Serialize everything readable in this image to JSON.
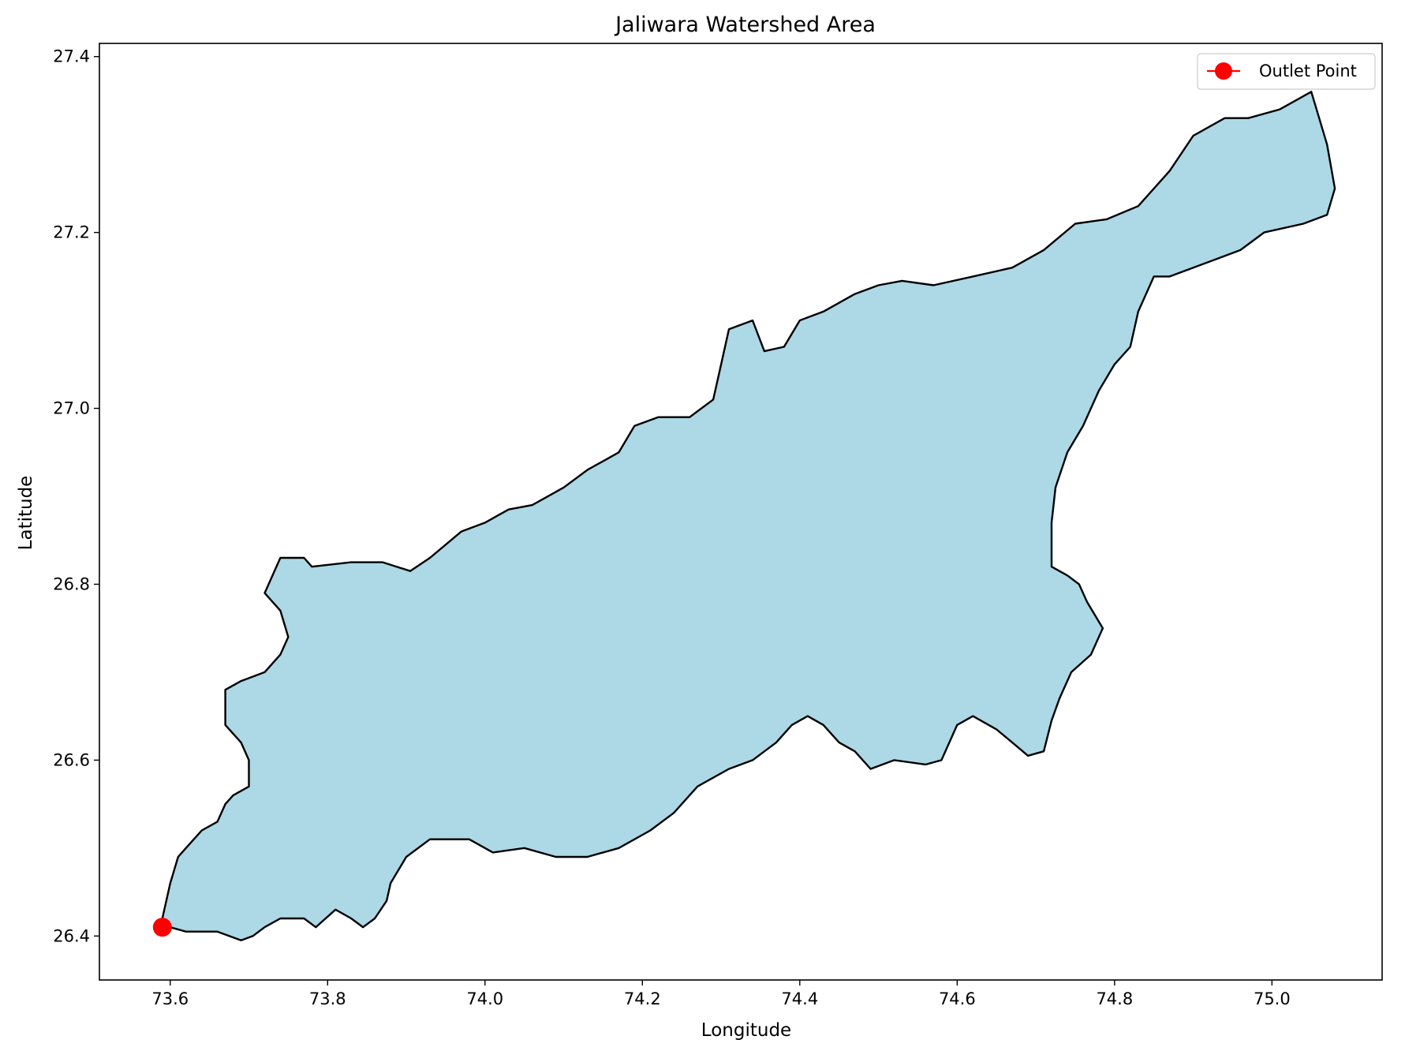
{
  "chart_data": {
    "type": "map",
    "title": "Jaliwara Watershed Area",
    "xlabel": "Longitude",
    "ylabel": "Latitude",
    "xlim": [
      73.51,
      75.14
    ],
    "ylim": [
      26.35,
      27.415
    ],
    "xticks": [
      {
        "value": 73.6,
        "label": "73.6"
      },
      {
        "value": 73.8,
        "label": "73.8"
      },
      {
        "value": 74.0,
        "label": "74.0"
      },
      {
        "value": 74.2,
        "label": "74.2"
      },
      {
        "value": 74.4,
        "label": "74.4"
      },
      {
        "value": 74.6,
        "label": "74.6"
      },
      {
        "value": 74.8,
        "label": "74.8"
      },
      {
        "value": 75.0,
        "label": "75.0"
      }
    ],
    "yticks": [
      {
        "value": 26.4,
        "label": "26.4"
      },
      {
        "value": 26.6,
        "label": "26.6"
      },
      {
        "value": 26.8,
        "label": "26.8"
      },
      {
        "value": 27.0,
        "label": "27.0"
      },
      {
        "value": 27.2,
        "label": "27.2"
      },
      {
        "value": 27.4,
        "label": "27.4"
      }
    ],
    "grid": false,
    "legend": {
      "position": "top-right",
      "entries": [
        "Outlet Point"
      ]
    },
    "watershed": {
      "fill": "#add8e6",
      "edge": "#000000",
      "boundary": [
        [
          73.59,
          26.42
        ],
        [
          73.6,
          26.46
        ],
        [
          73.61,
          26.49
        ],
        [
          73.62,
          26.5
        ],
        [
          73.64,
          26.52
        ],
        [
          73.66,
          26.53
        ],
        [
          73.67,
          26.55
        ],
        [
          73.68,
          26.56
        ],
        [
          73.7,
          26.57
        ],
        [
          73.7,
          26.6
        ],
        [
          73.69,
          26.62
        ],
        [
          73.67,
          26.64
        ],
        [
          73.67,
          26.68
        ],
        [
          73.69,
          26.69
        ],
        [
          73.72,
          26.7
        ],
        [
          73.74,
          26.72
        ],
        [
          73.75,
          26.74
        ],
        [
          73.74,
          26.77
        ],
        [
          73.72,
          26.79
        ],
        [
          73.74,
          26.83
        ],
        [
          73.77,
          26.83
        ],
        [
          73.78,
          26.82
        ],
        [
          73.83,
          26.825
        ],
        [
          73.87,
          26.825
        ],
        [
          73.905,
          26.815
        ],
        [
          73.93,
          26.83
        ],
        [
          73.97,
          26.86
        ],
        [
          74.0,
          26.87
        ],
        [
          74.03,
          26.885
        ],
        [
          74.06,
          26.89
        ],
        [
          74.1,
          26.91
        ],
        [
          74.13,
          26.93
        ],
        [
          74.17,
          26.95
        ],
        [
          74.19,
          26.98
        ],
        [
          74.22,
          26.99
        ],
        [
          74.26,
          26.99
        ],
        [
          74.29,
          27.01
        ],
        [
          74.3,
          27.05
        ],
        [
          74.31,
          27.09
        ],
        [
          74.34,
          27.1
        ],
        [
          74.355,
          27.065
        ],
        [
          74.38,
          27.07
        ],
        [
          74.4,
          27.1
        ],
        [
          74.43,
          27.11
        ],
        [
          74.47,
          27.13
        ],
        [
          74.5,
          27.14
        ],
        [
          74.53,
          27.145
        ],
        [
          74.57,
          27.14
        ],
        [
          74.62,
          27.15
        ],
        [
          74.67,
          27.16
        ],
        [
          74.71,
          27.18
        ],
        [
          74.75,
          27.21
        ],
        [
          74.79,
          27.215
        ],
        [
          74.83,
          27.23
        ],
        [
          74.87,
          27.27
        ],
        [
          74.9,
          27.31
        ],
        [
          74.94,
          27.33
        ],
        [
          74.97,
          27.33
        ],
        [
          75.01,
          27.34
        ],
        [
          75.05,
          27.36
        ],
        [
          75.06,
          27.33
        ],
        [
          75.07,
          27.3
        ],
        [
          75.08,
          27.25
        ],
        [
          75.07,
          27.22
        ],
        [
          75.04,
          27.21
        ],
        [
          74.99,
          27.2
        ],
        [
          74.96,
          27.18
        ],
        [
          74.93,
          27.17
        ],
        [
          74.9,
          27.16
        ],
        [
          74.87,
          27.15
        ],
        [
          74.85,
          27.15
        ],
        [
          74.83,
          27.11
        ],
        [
          74.82,
          27.07
        ],
        [
          74.8,
          27.05
        ],
        [
          74.78,
          27.02
        ],
        [
          74.76,
          26.98
        ],
        [
          74.74,
          26.95
        ],
        [
          74.725,
          26.91
        ],
        [
          74.72,
          26.87
        ],
        [
          74.72,
          26.82
        ],
        [
          74.74,
          26.81
        ],
        [
          74.755,
          26.8
        ],
        [
          74.765,
          26.78
        ],
        [
          74.785,
          26.75
        ],
        [
          74.77,
          26.72
        ],
        [
          74.745,
          26.7
        ],
        [
          74.73,
          26.67
        ],
        [
          74.72,
          26.645
        ],
        [
          74.71,
          26.61
        ],
        [
          74.69,
          26.605
        ],
        [
          74.67,
          26.62
        ],
        [
          74.65,
          26.635
        ],
        [
          74.62,
          26.65
        ],
        [
          74.6,
          26.64
        ],
        [
          74.58,
          26.6
        ],
        [
          74.56,
          26.595
        ],
        [
          74.52,
          26.6
        ],
        [
          74.49,
          26.59
        ],
        [
          74.47,
          26.61
        ],
        [
          74.45,
          26.62
        ],
        [
          74.43,
          26.64
        ],
        [
          74.41,
          26.65
        ],
        [
          74.39,
          26.64
        ],
        [
          74.37,
          26.62
        ],
        [
          74.34,
          26.6
        ],
        [
          74.31,
          26.59
        ],
        [
          74.27,
          26.57
        ],
        [
          74.24,
          26.54
        ],
        [
          74.21,
          26.52
        ],
        [
          74.17,
          26.5
        ],
        [
          74.13,
          26.49
        ],
        [
          74.09,
          26.49
        ],
        [
          74.05,
          26.5
        ],
        [
          74.01,
          26.495
        ],
        [
          73.98,
          26.51
        ],
        [
          73.93,
          26.51
        ],
        [
          73.9,
          26.49
        ],
        [
          73.88,
          26.46
        ],
        [
          73.875,
          26.44
        ],
        [
          73.86,
          26.42
        ],
        [
          73.845,
          26.41
        ],
        [
          73.83,
          26.42
        ],
        [
          73.81,
          26.43
        ],
        [
          73.785,
          26.41
        ],
        [
          73.77,
          26.42
        ],
        [
          73.74,
          26.42
        ],
        [
          73.72,
          26.41
        ],
        [
          73.705,
          26.4
        ],
        [
          73.69,
          26.395
        ],
        [
          73.66,
          26.405
        ],
        [
          73.64,
          26.405
        ],
        [
          73.62,
          26.405
        ],
        [
          73.6,
          26.41
        ]
      ]
    },
    "outlet_point": {
      "name": "Outlet Point",
      "lon": 73.59,
      "lat": 26.41,
      "color": "#ff0000"
    }
  }
}
